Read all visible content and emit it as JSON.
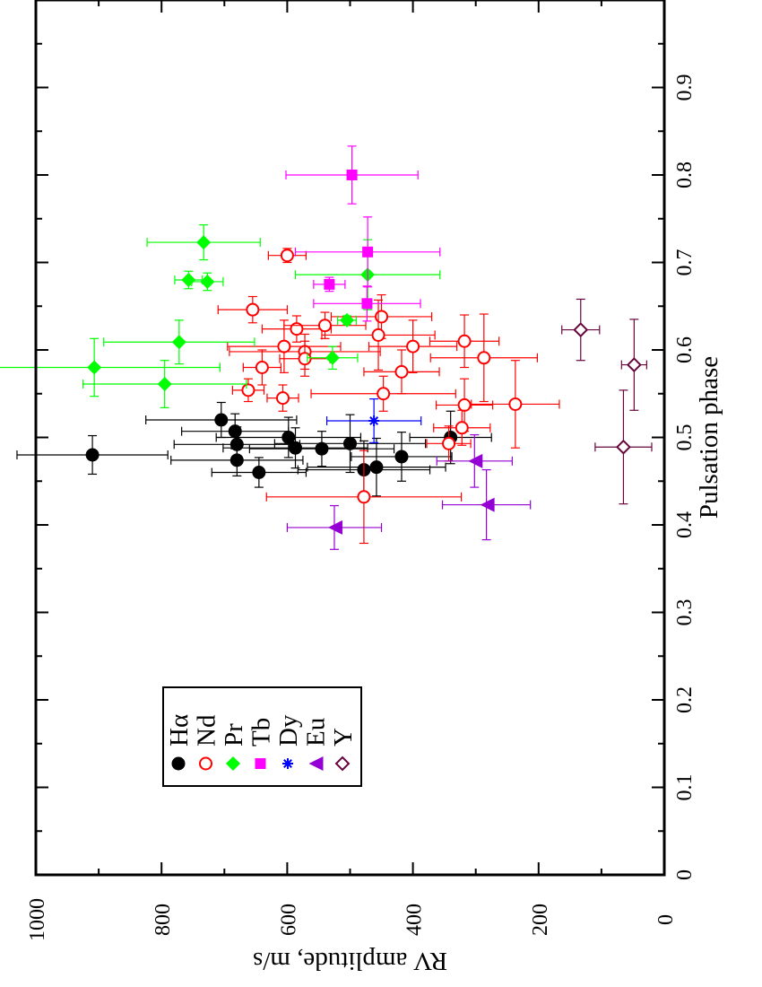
{
  "chart_data": {
    "type": "scatter",
    "orientation": "rotated-90-clockwise",
    "xlabel": "Pulsation phase",
    "ylabel": "RV amplitude, m/s",
    "xlim": [
      0,
      1.0
    ],
    "ylim": [
      0,
      1000
    ],
    "x_ticks": [
      "0",
      "0.1",
      "0.2",
      "0.3",
      "0.4",
      "0.5",
      "0.6",
      "0.7",
      "0.8",
      "0.9"
    ],
    "y_ticks": [
      "0",
      "200",
      "400",
      "600",
      "800",
      "1000"
    ],
    "legend_position": "bottom-left",
    "series": [
      {
        "name": "Hα",
        "marker": "filled-circle",
        "color": "#000000",
        "points": [
          {
            "phase": 0.48,
            "phase_err": 0.022,
            "amp": 910,
            "amp_err": 120
          },
          {
            "phase": 0.52,
            "phase_err": 0.02,
            "amp": 705,
            "amp_err": 120
          },
          {
            "phase": 0.507,
            "phase_err": 0.02,
            "amp": 683,
            "amp_err": 85
          },
          {
            "phase": 0.492,
            "phase_err": 0.02,
            "amp": 680,
            "amp_err": 100
          },
          {
            "phase": 0.474,
            "phase_err": 0.018,
            "amp": 680,
            "amp_err": 105
          },
          {
            "phase": 0.46,
            "phase_err": 0.017,
            "amp": 645,
            "amp_err": 75
          },
          {
            "phase": 0.5,
            "phase_err": 0.023,
            "amp": 598,
            "amp_err": 115
          },
          {
            "phase": 0.488,
            "phase_err": 0.023,
            "amp": 587,
            "amp_err": 115
          },
          {
            "phase": 0.487,
            "phase_err": 0.02,
            "amp": 545,
            "amp_err": 115
          },
          {
            "phase": 0.493,
            "phase_err": 0.033,
            "amp": 500,
            "amp_err": 120
          },
          {
            "phase": 0.463,
            "phase_err": 0.033,
            "amp": 478,
            "amp_err": 105
          },
          {
            "phase": 0.466,
            "phase_err": 0.033,
            "amp": 458,
            "amp_err": 110
          },
          {
            "phase": 0.478,
            "phase_err": 0.028,
            "amp": 418,
            "amp_err": 80
          },
          {
            "phase": 0.5,
            "phase_err": 0.03,
            "amp": 340,
            "amp_err": 65
          }
        ]
      },
      {
        "name": "Nd",
        "marker": "open-circle",
        "color": "#ff0000",
        "points": [
          {
            "phase": 0.708,
            "phase_err": 0.008,
            "amp": 600,
            "amp_err": 30
          },
          {
            "phase": 0.646,
            "phase_err": 0.015,
            "amp": 655,
            "amp_err": 55
          },
          {
            "phase": 0.624,
            "phase_err": 0.015,
            "amp": 585,
            "amp_err": 55
          },
          {
            "phase": 0.628,
            "phase_err": 0.015,
            "amp": 540,
            "amp_err": 65
          },
          {
            "phase": 0.638,
            "phase_err": 0.025,
            "amp": 450,
            "amp_err": 80
          },
          {
            "phase": 0.604,
            "phase_err": 0.03,
            "amp": 605,
            "amp_err": 90
          },
          {
            "phase": 0.598,
            "phase_err": 0.02,
            "amp": 572,
            "amp_err": 120
          },
          {
            "phase": 0.59,
            "phase_err": 0.02,
            "amp": 572,
            "amp_err": 40
          },
          {
            "phase": 0.58,
            "phase_err": 0.02,
            "amp": 640,
            "amp_err": 30
          },
          {
            "phase": 0.617,
            "phase_err": 0.04,
            "amp": 455,
            "amp_err": 90
          },
          {
            "phase": 0.604,
            "phase_err": 0.03,
            "amp": 400,
            "amp_err": 70
          },
          {
            "phase": 0.575,
            "phase_err": 0.025,
            "amp": 418,
            "amp_err": 60
          },
          {
            "phase": 0.61,
            "phase_err": 0.03,
            "amp": 318,
            "amp_err": 55
          },
          {
            "phase": 0.591,
            "phase_err": 0.05,
            "amp": 287,
            "amp_err": 85
          },
          {
            "phase": 0.554,
            "phase_err": 0.013,
            "amp": 662,
            "amp_err": 25
          },
          {
            "phase": 0.545,
            "phase_err": 0.015,
            "amp": 607,
            "amp_err": 25
          },
          {
            "phase": 0.55,
            "phase_err": 0.02,
            "amp": 447,
            "amp_err": 115
          },
          {
            "phase": 0.537,
            "phase_err": 0.03,
            "amp": 318,
            "amp_err": 45
          },
          {
            "phase": 0.538,
            "phase_err": 0.05,
            "amp": 237,
            "amp_err": 70
          },
          {
            "phase": 0.511,
            "phase_err": 0.02,
            "amp": 322,
            "amp_err": 45
          },
          {
            "phase": 0.493,
            "phase_err": 0.02,
            "amp": 343,
            "amp_err": 35
          },
          {
            "phase": 0.432,
            "phase_err": 0.053,
            "amp": 478,
            "amp_err": 155
          }
        ]
      },
      {
        "name": "Pr",
        "marker": "filled-diamond",
        "color": "#00ff00",
        "points": [
          {
            "phase": 0.58,
            "phase_err": 0.033,
            "amp": 907,
            "amp_err": 200
          },
          {
            "phase": 0.609,
            "phase_err": 0.025,
            "amp": 772,
            "amp_err": 120
          },
          {
            "phase": 0.561,
            "phase_err": 0.027,
            "amp": 795,
            "amp_err": 130
          },
          {
            "phase": 0.723,
            "phase_err": 0.02,
            "amp": 733,
            "amp_err": 90
          },
          {
            "phase": 0.68,
            "phase_err": 0.01,
            "amp": 757,
            "amp_err": 22
          },
          {
            "phase": 0.678,
            "phase_err": 0.01,
            "amp": 727,
            "amp_err": 25
          },
          {
            "phase": 0.634,
            "phase_err": 0.005,
            "amp": 505,
            "amp_err": 15
          },
          {
            "phase": 0.591,
            "phase_err": 0.013,
            "amp": 528,
            "amp_err": 40
          },
          {
            "phase": 0.686,
            "phase_err": 0.04,
            "amp": 472,
            "amp_err": 115
          }
        ]
      },
      {
        "name": "Tb",
        "marker": "filled-square",
        "color": "#ff00ff",
        "points": [
          {
            "phase": 0.8,
            "phase_err": 0.033,
            "amp": 497,
            "amp_err": 105
          },
          {
            "phase": 0.712,
            "phase_err": 0.04,
            "amp": 472,
            "amp_err": 115
          },
          {
            "phase": 0.675,
            "phase_err": 0.008,
            "amp": 533,
            "amp_err": 25
          },
          {
            "phase": 0.653,
            "phase_err": 0.02,
            "amp": 473,
            "amp_err": 85
          }
        ]
      },
      {
        "name": "Dy",
        "marker": "asterisk",
        "color": "#0000ff",
        "points": [
          {
            "phase": 0.519,
            "phase_err": 0.025,
            "amp": 462,
            "amp_err": 75
          }
        ]
      },
      {
        "name": "Eu",
        "marker": "filled-triangle",
        "color": "#9400d3",
        "points": [
          {
            "phase": 0.397,
            "phase_err": 0.025,
            "amp": 525,
            "amp_err": 75
          },
          {
            "phase": 0.473,
            "phase_err": 0.03,
            "amp": 302,
            "amp_err": 60
          },
          {
            "phase": 0.423,
            "phase_err": 0.04,
            "amp": 283,
            "amp_err": 70
          }
        ]
      },
      {
        "name": "Y",
        "marker": "open-diamond",
        "color": "#67063d",
        "points": [
          {
            "phase": 0.623,
            "phase_err": 0.035,
            "amp": 133,
            "amp_err": 30
          },
          {
            "phase": 0.489,
            "phase_err": 0.065,
            "amp": 65,
            "amp_err": 45
          },
          {
            "phase": 0.583,
            "phase_err": 0.052,
            "amp": 48,
            "amp_err": 20
          }
        ]
      }
    ]
  }
}
